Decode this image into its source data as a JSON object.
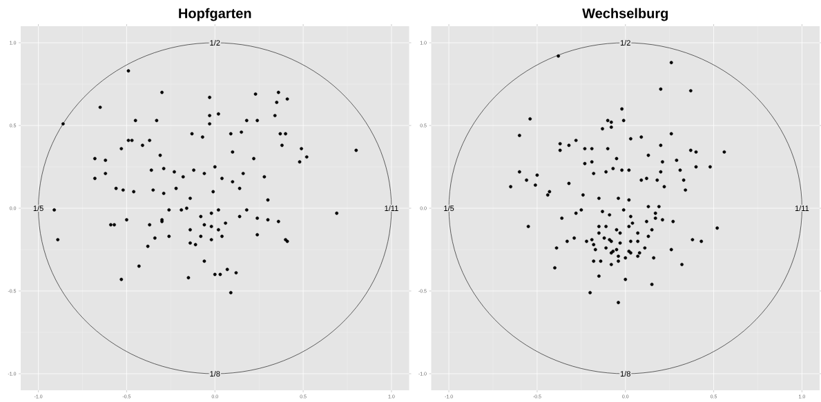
{
  "chart_data": [
    {
      "type": "scatter",
      "title": "Hopfgarten",
      "xlim": [
        -1.1,
        1.1
      ],
      "ylim": [
        -1.1,
        1.1
      ],
      "xticks": [
        {
          "value": -1,
          "label": "-1.0"
        },
        {
          "value": -0.5,
          "label": "-0.5"
        },
        {
          "value": 0,
          "label": "0.0"
        },
        {
          "value": 0.5,
          "label": "0.5"
        },
        {
          "value": 1,
          "label": "1.0"
        }
      ],
      "yticks": [
        {
          "value": -1,
          "label": "-1.0"
        },
        {
          "value": -0.5,
          "label": "-0.5"
        },
        {
          "value": 0,
          "label": "0.0"
        },
        {
          "value": 0.5,
          "label": "0.5"
        },
        {
          "value": 1,
          "label": "1.0"
        }
      ],
      "grid": true,
      "marker": "circle",
      "annotations": [
        {
          "text": "1/2",
          "x": 0,
          "y": 1
        },
        {
          "text": "1/8",
          "x": 0,
          "y": -1
        },
        {
          "text": "1/5",
          "x": -1,
          "y": 0
        },
        {
          "text": "1/11",
          "x": 1,
          "y": 0
        }
      ],
      "series": [
        {
          "color": "#000000",
          "x": [
            -0.86,
            -0.49,
            -0.65,
            -0.3,
            -0.03,
            0.02,
            0.23,
            0.36,
            0.41,
            0.35,
            -0.03,
            -0.03,
            -0.45,
            -0.33,
            0.34,
            0.24,
            0.18,
            -0.49,
            -0.37,
            -0.41,
            -0.47,
            -0.68,
            -0.62,
            -0.53,
            -0.31,
            -0.13,
            -0.07,
            0.09,
            0.15,
            0.37,
            0.4,
            0.38,
            0.49,
            0.52,
            0.48,
            0.8,
            0.22,
            0.1,
            -0.68,
            -0.62,
            -0.56,
            -0.52,
            -0.46,
            -0.91,
            -0.89,
            0.69,
            -0.36,
            -0.29,
            -0.23,
            -0.18,
            -0.12,
            -0.06,
            0.0,
            0.04,
            0.1,
            0.16,
            0.14,
            -0.01,
            -0.14,
            -0.22,
            -0.29,
            -0.35,
            0.28,
            0.3,
            -0.26,
            -0.19,
            -0.16,
            -0.08,
            -0.02,
            0.02,
            0.06,
            0.14,
            0.18,
            0.24,
            0.3,
            0.36,
            0.4,
            0.24,
            -0.3,
            -0.26,
            -0.37,
            -0.59,
            -0.57,
            -0.5,
            -0.14,
            -0.08,
            -0.02,
            0.04,
            -0.11,
            -0.02,
            0.02,
            -0.06,
            -0.14,
            -0.43,
            -0.53,
            -0.15,
            0.0,
            0.03,
            0.07,
            0.12,
            0.09,
            -0.06,
            -0.38,
            -0.34,
            0.41,
            -0.3
          ],
          "values": [
            0.51,
            0.83,
            0.61,
            0.7,
            0.67,
            0.57,
            0.69,
            0.7,
            0.66,
            0.64,
            0.56,
            0.51,
            0.53,
            0.53,
            0.56,
            0.53,
            0.53,
            0.41,
            0.41,
            0.38,
            0.41,
            0.3,
            0.29,
            0.36,
            0.32,
            0.45,
            0.43,
            0.45,
            0.46,
            0.45,
            0.45,
            0.38,
            0.36,
            0.31,
            0.28,
            0.35,
            0.3,
            0.34,
            0.18,
            0.21,
            0.12,
            0.11,
            0.1,
            -0.01,
            -0.19,
            -0.03,
            0.23,
            0.24,
            0.22,
            0.19,
            0.23,
            0.21,
            0.25,
            0.18,
            0.16,
            0.21,
            0.12,
            0.1,
            0.06,
            0.12,
            0.09,
            0.11,
            0.19,
            0.05,
            -0.01,
            -0.01,
            0.0,
            -0.05,
            -0.03,
            -0.01,
            -0.09,
            -0.05,
            -0.01,
            -0.06,
            -0.07,
            -0.08,
            -0.19,
            -0.16,
            -0.07,
            -0.17,
            -0.1,
            -0.1,
            -0.1,
            -0.07,
            -0.13,
            -0.17,
            -0.19,
            -0.17,
            -0.22,
            -0.11,
            -0.13,
            -0.1,
            -0.21,
            -0.35,
            -0.43,
            -0.42,
            -0.4,
            -0.4,
            -0.37,
            -0.39,
            -0.51,
            -0.32,
            -0.23,
            -0.18,
            -0.2,
            -0.08
          ]
        }
      ]
    },
    {
      "type": "scatter",
      "title": "Wechselburg",
      "xlim": [
        -1.1,
        1.1
      ],
      "ylim": [
        -1.1,
        1.1
      ],
      "xticks": [
        {
          "value": -1,
          "label": "-1.0"
        },
        {
          "value": -0.5,
          "label": "-0.5"
        },
        {
          "value": 0,
          "label": "0.0"
        },
        {
          "value": 0.5,
          "label": "0.5"
        },
        {
          "value": 1,
          "label": "1.0"
        }
      ],
      "yticks": [
        {
          "value": -1,
          "label": "-1.0"
        },
        {
          "value": -0.5,
          "label": "-0.5"
        },
        {
          "value": 0,
          "label": "0.0"
        },
        {
          "value": 0.5,
          "label": "0.5"
        },
        {
          "value": 1,
          "label": "1.0"
        }
      ],
      "grid": true,
      "marker": "circle",
      "annotations": [
        {
          "text": "1/2",
          "x": 0,
          "y": 1
        },
        {
          "text": "1/8",
          "x": 0,
          "y": -1
        },
        {
          "text": "1/5",
          "x": -1,
          "y": 0
        },
        {
          "text": "1/11",
          "x": 1,
          "y": 0
        }
      ],
      "series": [
        {
          "color": "#000000",
          "x": [
            -0.38,
            0.26,
            0.2,
            0.37,
            -0.02,
            -0.54,
            -0.6,
            -0.1,
            -0.08,
            -0.08,
            -0.13,
            -0.01,
            0.26,
            0.09,
            0.03,
            0.2,
            0.56,
            0.37,
            0.4,
            0.48,
            -0.37,
            -0.37,
            -0.32,
            -0.28,
            -0.23,
            -0.19,
            -0.1,
            -0.19,
            -0.05,
            0.13,
            0.21,
            0.29,
            0.31,
            0.4,
            0.2,
            -0.6,
            -0.65,
            -0.56,
            -0.5,
            -0.51,
            -0.43,
            -0.44,
            -0.32,
            -0.23,
            -0.18,
            -0.11,
            -0.07,
            -0.02,
            0.02,
            0.09,
            0.12,
            0.18,
            0.22,
            0.34,
            0.33,
            -0.24,
            -0.15,
            -0.04,
            0.02,
            0.13,
            0.19,
            0.17,
            -0.13,
            -0.09,
            -0.01,
            0.03,
            -0.25,
            -0.28,
            -0.36,
            -0.55,
            0.04,
            -0.11,
            -0.15,
            -0.05,
            0.02,
            0.12,
            0.17,
            0.21,
            0.27,
            0.52,
            -0.09,
            -0.03,
            0.07,
            0.15,
            0.13,
            -0.15,
            -0.19,
            0.38,
            0.43,
            -0.39,
            -0.4,
            -0.33,
            -0.29,
            -0.22,
            -0.18,
            -0.17,
            -0.18,
            -0.14,
            -0.15,
            -0.2,
            -0.04,
            0.0,
            0.15,
            -0.08,
            -0.04,
            0.0,
            -0.04,
            -0.08,
            -0.07,
            -0.05,
            -0.11,
            0.02,
            0.03,
            0.07,
            0.08,
            0.11,
            0.16,
            0.26,
            0.32,
            -0.12,
            -0.08,
            -0.03,
            0.03,
            0.07
          ],
          "values": [
            0.92,
            0.88,
            0.72,
            0.71,
            0.6,
            0.54,
            0.44,
            0.53,
            0.52,
            0.49,
            0.48,
            0.53,
            0.45,
            0.43,
            0.42,
            0.38,
            0.34,
            0.35,
            0.34,
            0.25,
            0.39,
            0.35,
            0.38,
            0.41,
            0.36,
            0.36,
            0.36,
            0.28,
            0.3,
            0.32,
            0.28,
            0.29,
            0.23,
            0.25,
            0.22,
            0.22,
            0.13,
            0.17,
            0.2,
            0.14,
            0.1,
            0.08,
            0.15,
            0.27,
            0.21,
            0.22,
            0.24,
            0.23,
            0.23,
            0.17,
            0.18,
            0.17,
            0.13,
            0.11,
            0.17,
            0.08,
            0.06,
            0.06,
            0.05,
            0.01,
            0.01,
            -0.03,
            -0.02,
            -0.04,
            -0.01,
            -0.05,
            -0.01,
            -0.03,
            -0.06,
            -0.11,
            -0.09,
            -0.11,
            -0.11,
            -0.13,
            -0.11,
            -0.08,
            -0.06,
            -0.07,
            -0.08,
            -0.12,
            -0.19,
            -0.15,
            -0.15,
            -0.13,
            -0.17,
            -0.15,
            -0.19,
            -0.19,
            -0.2,
            -0.24,
            -0.36,
            -0.2,
            -0.18,
            -0.2,
            -0.22,
            -0.25,
            -0.32,
            -0.32,
            -0.41,
            -0.51,
            -0.57,
            -0.43,
            -0.46,
            -0.34,
            -0.32,
            -0.3,
            -0.29,
            -0.27,
            -0.26,
            -0.25,
            -0.24,
            -0.26,
            -0.27,
            -0.29,
            -0.27,
            -0.24,
            -0.3,
            -0.25,
            -0.34,
            -0.18,
            -0.2,
            -0.21,
            -0.2,
            -0.2
          ]
        }
      ]
    }
  ]
}
